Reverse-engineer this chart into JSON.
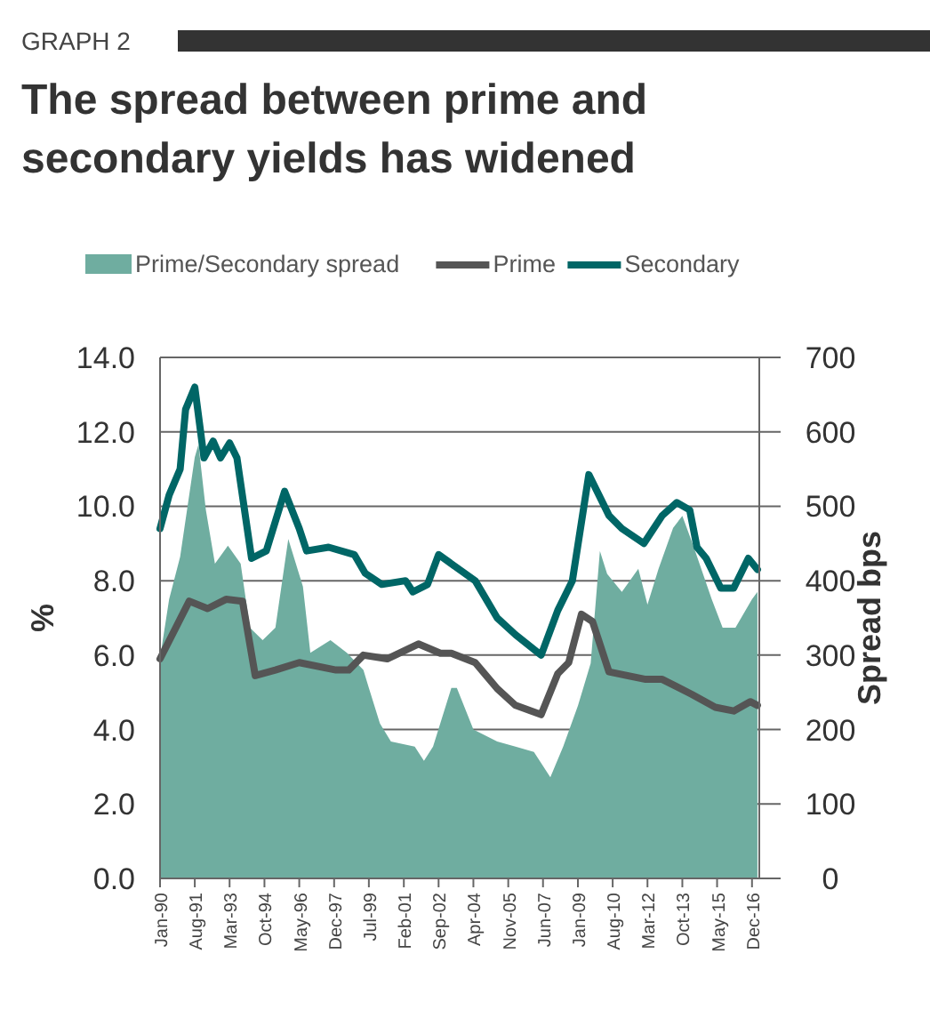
{
  "chart_data": {
    "type": "line",
    "subtitle": "GRAPH 2",
    "title": "The spread between prime and secondary yields has widened",
    "ylabel": "%",
    "y2label": "Spread bps",
    "xlim": [
      "1990-01",
      "2017-04"
    ],
    "xticks": [
      {
        "value": "1990-01",
        "label": "Jan-90"
      },
      {
        "value": "1991-08",
        "label": "Aug-91"
      },
      {
        "value": "1993-03",
        "label": "Mar-93"
      },
      {
        "value": "1994-10",
        "label": "Oct-94"
      },
      {
        "value": "1996-05",
        "label": "May-96"
      },
      {
        "value": "1997-12",
        "label": "Dec-97"
      },
      {
        "value": "1999-07",
        "label": "Jul-99"
      },
      {
        "value": "2001-02",
        "label": "Feb-01"
      },
      {
        "value": "2002-09",
        "label": "Sep-02"
      },
      {
        "value": "2004-04",
        "label": "Apr-04"
      },
      {
        "value": "2005-11",
        "label": "Nov-05"
      },
      {
        "value": "2007-06",
        "label": "Jun-07"
      },
      {
        "value": "2009-01",
        "label": "Jan-09"
      },
      {
        "value": "2010-08",
        "label": "Aug-10"
      },
      {
        "value": "2012-03",
        "label": "Mar-12"
      },
      {
        "value": "2013-10",
        "label": "Oct-13"
      },
      {
        "value": "2015-05",
        "label": "May-15"
      },
      {
        "value": "2016-12",
        "label": "Dec-16"
      }
    ],
    "ylim": [
      0,
      14
    ],
    "yticks": [
      {
        "value": 0,
        "label": "0.0"
      },
      {
        "value": 2,
        "label": "2.0"
      },
      {
        "value": 4,
        "label": "4.0"
      },
      {
        "value": 6,
        "label": "6.0"
      },
      {
        "value": 8,
        "label": "8.0"
      },
      {
        "value": 10,
        "label": "10.0"
      },
      {
        "value": 12,
        "label": "12.0"
      },
      {
        "value": 14,
        "label": "14.0"
      }
    ],
    "y2lim": [
      0,
      700
    ],
    "y2ticks": [
      0,
      100,
      200,
      300,
      400,
      500,
      600,
      700
    ],
    "grid": "y",
    "legend": "top",
    "marker": "none",
    "line_style": "solid",
    "series": [
      {
        "name": "Prime/Secondary spread",
        "type": "area",
        "axis": "y2",
        "color": "#6fada0",
        "x": [
          "1990-01",
          "1990-06",
          "1990-12",
          "1991-08",
          "1991-10",
          "1992-02",
          "1992-07",
          "1993-02",
          "1993-09",
          "1994-02",
          "1994-09",
          "1995-04",
          "1995-11",
          "1996-07",
          "1996-11",
          "1997-10",
          "1998-07",
          "1999-04",
          "1999-07",
          "2000-01",
          "2000-07",
          "2001-08",
          "2002-01",
          "2002-06",
          "2003-04",
          "2003-07",
          "2004-04",
          "2005-05",
          "2006-03",
          "2007-01",
          "2007-10",
          "2008-05",
          "2009-01",
          "2009-08",
          "2010-01",
          "2010-05",
          "2011-01",
          "2011-10",
          "2012-03",
          "2012-09",
          "2013-05",
          "2013-10",
          "2014-04",
          "2015-02",
          "2015-08",
          "2016-03",
          "2016-12",
          "2017-03"
        ],
        "values": [
          296,
          375,
          432,
          566,
          583,
          495,
          423,
          447,
          423,
          337,
          320,
          337,
          456,
          392,
          303,
          320,
          303,
          280,
          256,
          208,
          184,
          177,
          158,
          177,
          256,
          256,
          200,
          184,
          177,
          170,
          136,
          177,
          232,
          289,
          440,
          409,
          385,
          416,
          368,
          416,
          471,
          487,
          447,
          375,
          337,
          337,
          375,
          385
        ]
      },
      {
        "name": "Prime",
        "color": "#555555",
        "x": [
          "1990-01",
          "1991-05",
          "1992-03",
          "1993-01",
          "1993-10",
          "1994-05",
          "1995-04",
          "1996-05",
          "1998-01",
          "1998-08",
          "1999-04",
          "2000-05",
          "2001-10",
          "2002-10",
          "2003-04",
          "2004-05",
          "2005-05",
          "2006-03",
          "2007-05",
          "2008-02",
          "2008-08",
          "2009-03",
          "2009-09",
          "2010-06",
          "2012-02",
          "2012-11",
          "2014-03",
          "2015-04",
          "2016-02",
          "2016-11",
          "2017-03"
        ],
        "values": [
          5.9,
          7.45,
          7.25,
          7.5,
          7.45,
          5.45,
          5.6,
          5.8,
          5.6,
          5.6,
          6.0,
          5.9,
          6.3,
          6.05,
          6.05,
          5.8,
          5.1,
          4.65,
          4.4,
          5.5,
          5.8,
          7.1,
          6.9,
          5.55,
          5.35,
          5.35,
          4.95,
          4.6,
          4.5,
          4.75,
          4.65
        ]
      },
      {
        "name": "Secondary",
        "color": "#006666",
        "x": [
          "1990-01",
          "1990-06",
          "1990-12",
          "1991-03",
          "1991-08",
          "1992-01",
          "1992-06",
          "1992-10",
          "1993-03",
          "1993-07",
          "1994-03",
          "1994-11",
          "1995-09",
          "1996-05",
          "1996-09",
          "1997-09",
          "1998-11",
          "1999-05",
          "2000-02",
          "2001-03",
          "2001-07",
          "2002-03",
          "2002-09",
          "2004-05",
          "2005-05",
          "2006-03",
          "2007-05",
          "2008-02",
          "2008-10",
          "2009-07",
          "2010-06",
          "2011-01",
          "2012-01",
          "2012-11",
          "2013-07",
          "2014-02",
          "2014-06",
          "2014-11",
          "2015-07",
          "2016-02",
          "2016-10",
          "2017-03"
        ],
        "values": [
          9.4,
          10.3,
          11.0,
          12.6,
          13.2,
          11.3,
          11.75,
          11.3,
          11.7,
          11.3,
          8.6,
          8.8,
          10.4,
          9.4,
          8.8,
          8.9,
          8.7,
          8.2,
          7.9,
          8.0,
          7.7,
          7.9,
          8.7,
          8.0,
          7.0,
          6.55,
          6.0,
          7.2,
          8.0,
          10.85,
          9.75,
          9.4,
          9.0,
          9.75,
          10.1,
          9.9,
          8.9,
          8.6,
          7.8,
          7.8,
          8.6,
          8.3
        ]
      }
    ]
  }
}
